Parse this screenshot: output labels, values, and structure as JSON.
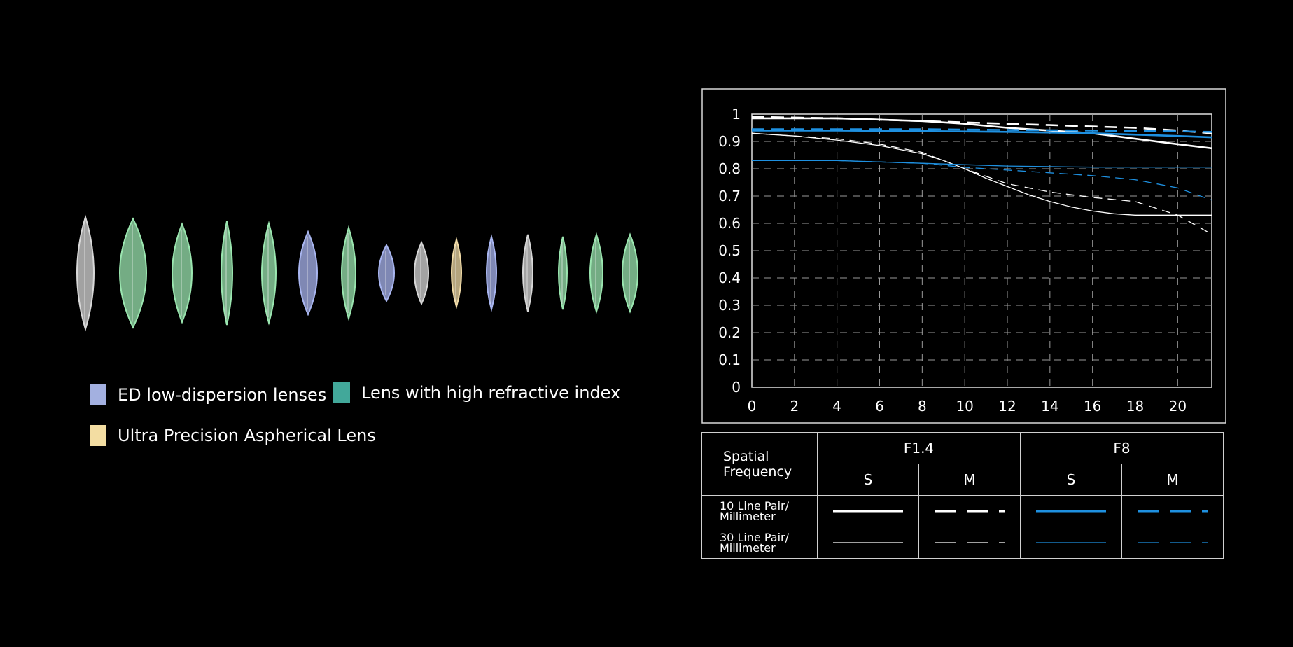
{
  "lens_diagram": {
    "elements": [
      "clear",
      "green",
      "green",
      "green",
      "green",
      "blue",
      "green",
      "blue",
      "clear",
      "yellow",
      "blue",
      "clear",
      "green",
      "green",
      "green"
    ],
    "colors": {
      "clear": "#d8d8d8",
      "green": "#9be6b0",
      "blue": "#a9b6f0",
      "yellow": "#f2dca8"
    }
  },
  "legend": {
    "items": [
      {
        "label": "ED low-dispersion lenses",
        "color": "#a3b0e0"
      },
      {
        "label": "Lens with high refractive index",
        "color": "#42a89a"
      },
      {
        "label": "Ultra Precision Aspherical Lens",
        "color": "#f3dda2"
      }
    ]
  },
  "chart_data": {
    "type": "line",
    "x_ticks": [
      0,
      2,
      4,
      6,
      8,
      10,
      12,
      14,
      16,
      18,
      20
    ],
    "y_ticks": [
      0,
      0.1,
      0.2,
      0.3,
      0.4,
      0.5,
      0.6,
      0.7,
      0.8,
      0.9,
      1
    ],
    "y_tick_labels": [
      "0",
      "0.1",
      "0.2",
      "0.3",
      "0.4",
      "0.5",
      "0.6",
      "0.7",
      "0.8",
      "0.9",
      "1"
    ],
    "xlim": [
      0,
      21.6
    ],
    "ylim": [
      0,
      1
    ],
    "grid": true,
    "series": [
      {
        "aperture": "F1.4",
        "orientation": "S",
        "frequency": "10",
        "color": "#ffffff",
        "style": "solid",
        "weight": "thick",
        "x": [
          0,
          4,
          8,
          10,
          12,
          14,
          16,
          18,
          20,
          21.6
        ],
        "y": [
          0.985,
          0.985,
          0.975,
          0.965,
          0.95,
          0.94,
          0.93,
          0.91,
          0.89,
          0.875
        ]
      },
      {
        "aperture": "F1.4",
        "orientation": "M",
        "frequency": "10",
        "color": "#ffffff",
        "style": "dashed",
        "weight": "thick",
        "x": [
          0,
          4,
          8,
          12,
          14,
          16,
          18,
          20,
          21.6
        ],
        "y": [
          0.99,
          0.985,
          0.975,
          0.965,
          0.96,
          0.955,
          0.95,
          0.94,
          0.93
        ]
      },
      {
        "aperture": "F8",
        "orientation": "S",
        "frequency": "10",
        "color": "#1e90e0",
        "style": "solid",
        "weight": "thick",
        "x": [
          0,
          4,
          8,
          12,
          16,
          20,
          21.6
        ],
        "y": [
          0.94,
          0.94,
          0.938,
          0.935,
          0.93,
          0.92,
          0.915
        ]
      },
      {
        "aperture": "F8",
        "orientation": "M",
        "frequency": "10",
        "color": "#1e90e0",
        "style": "dashed",
        "weight": "thick",
        "x": [
          0,
          4,
          8,
          12,
          16,
          20,
          21.6
        ],
        "y": [
          0.945,
          0.945,
          0.945,
          0.942,
          0.94,
          0.937,
          0.935
        ]
      },
      {
        "aperture": "F1.4",
        "orientation": "S",
        "frequency": "30",
        "color": "#ffffff",
        "style": "solid",
        "weight": "thin",
        "x": [
          0,
          2,
          4,
          6,
          8,
          9,
          10,
          11,
          12,
          13,
          14,
          15,
          16,
          17,
          18,
          20,
          21.6
        ],
        "y": [
          0.93,
          0.92,
          0.905,
          0.885,
          0.855,
          0.83,
          0.8,
          0.765,
          0.735,
          0.705,
          0.68,
          0.66,
          0.645,
          0.635,
          0.63,
          0.63,
          0.63
        ]
      },
      {
        "aperture": "F1.4",
        "orientation": "M",
        "frequency": "30",
        "color": "#ffffff",
        "style": "dashed",
        "weight": "thin",
        "x": [
          0,
          2,
          4,
          6,
          8,
          10,
          12,
          14,
          16,
          18,
          20,
          21.6
        ],
        "y": [
          0.93,
          0.92,
          0.91,
          0.89,
          0.86,
          0.8,
          0.745,
          0.715,
          0.695,
          0.68,
          0.63,
          0.56
        ]
      },
      {
        "aperture": "F8",
        "orientation": "S",
        "frequency": "30",
        "color": "#1e90e0",
        "style": "solid",
        "weight": "thin",
        "x": [
          0,
          4,
          8,
          10,
          12,
          14,
          16,
          18,
          20,
          21.6
        ],
        "y": [
          0.83,
          0.83,
          0.82,
          0.815,
          0.81,
          0.808,
          0.806,
          0.806,
          0.806,
          0.806
        ]
      },
      {
        "aperture": "F8",
        "orientation": "M",
        "frequency": "30",
        "color": "#1e90e0",
        "style": "dashed",
        "weight": "thin",
        "x": [
          0,
          4,
          8,
          10,
          12,
          14,
          16,
          18,
          20,
          21.6
        ],
        "y": [
          0.83,
          0.83,
          0.82,
          0.805,
          0.795,
          0.785,
          0.775,
          0.76,
          0.73,
          0.685
        ]
      }
    ]
  },
  "table": {
    "corner_label": "Spatial Frequency",
    "apertures": [
      "F1.4",
      "F8"
    ],
    "orientations": [
      "S",
      "M",
      "S",
      "M"
    ],
    "rows": [
      {
        "label_line1": "10 Line Pair/",
        "label_line2": "Millimeter",
        "frequency": "10"
      },
      {
        "label_line1": "30 Line Pair/",
        "label_line2": "Millimeter",
        "frequency": "30"
      }
    ]
  }
}
